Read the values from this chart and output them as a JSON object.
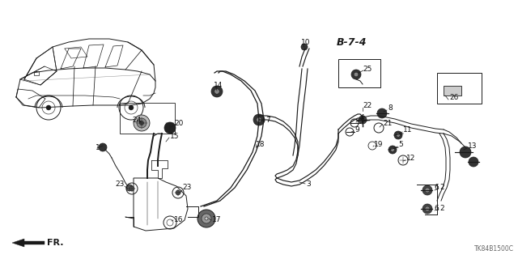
{
  "bg_color": "#ffffff",
  "diagram_code": "TK84B1500C",
  "page_ref": "B-7-4",
  "black": "#1a1a1a",
  "gray": "#666666",
  "scale": [
    640,
    320
  ]
}
